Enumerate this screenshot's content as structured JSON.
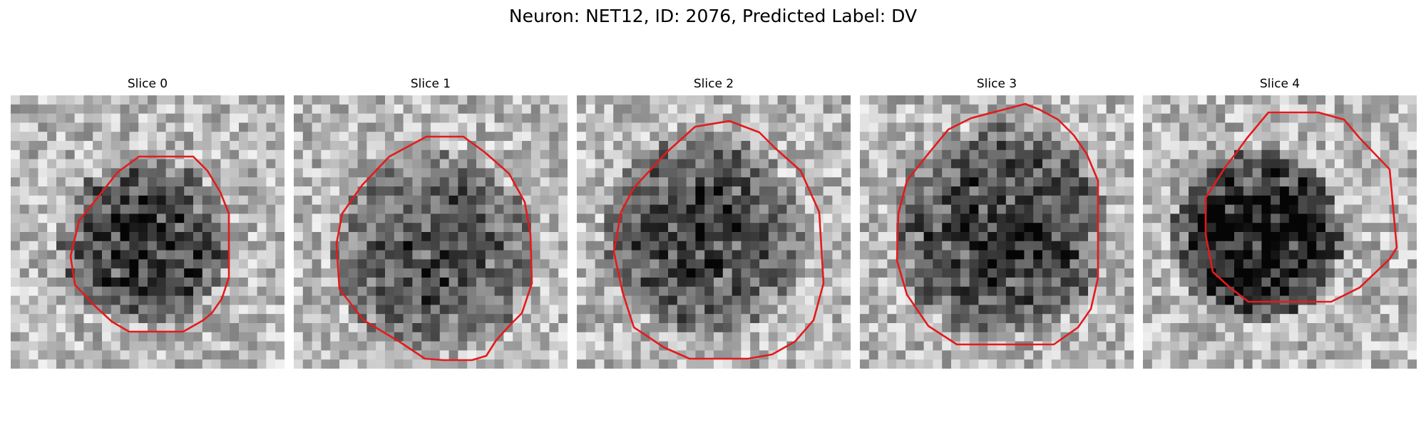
{
  "figure": {
    "title": "Neuron: NET12, ID: 2076, Predicted Label: DV",
    "contour_color": "#e41a1c",
    "colormap": "grayscale",
    "axes_visible": false
  },
  "panels": [
    {
      "title": "Slice 0"
    },
    {
      "title": "Slice 1"
    },
    {
      "title": "Slice 2"
    },
    {
      "title": "Slice 3"
    },
    {
      "title": "Slice 4"
    }
  ]
}
